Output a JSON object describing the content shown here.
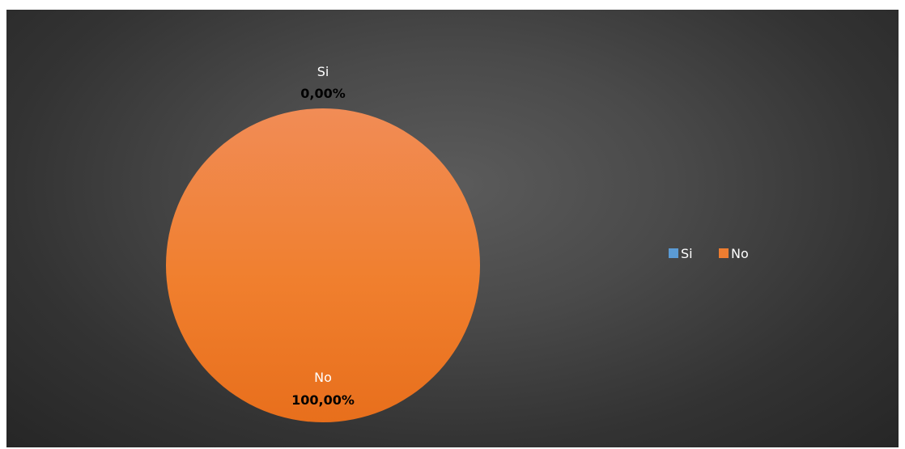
{
  "chart_data": {
    "type": "pie",
    "categories": [
      "Si",
      "No"
    ],
    "values": [
      0.0,
      100.0
    ],
    "data_labels": [
      "0,00%",
      "100,00%"
    ],
    "colors": [
      "#5b9bd5",
      "#ed7d31"
    ],
    "legend_placement": "right",
    "title": ""
  },
  "legend": {
    "items": [
      {
        "label": "Si",
        "color": "#5b9bd5"
      },
      {
        "label": "No",
        "color": "#ed7d31"
      }
    ]
  }
}
